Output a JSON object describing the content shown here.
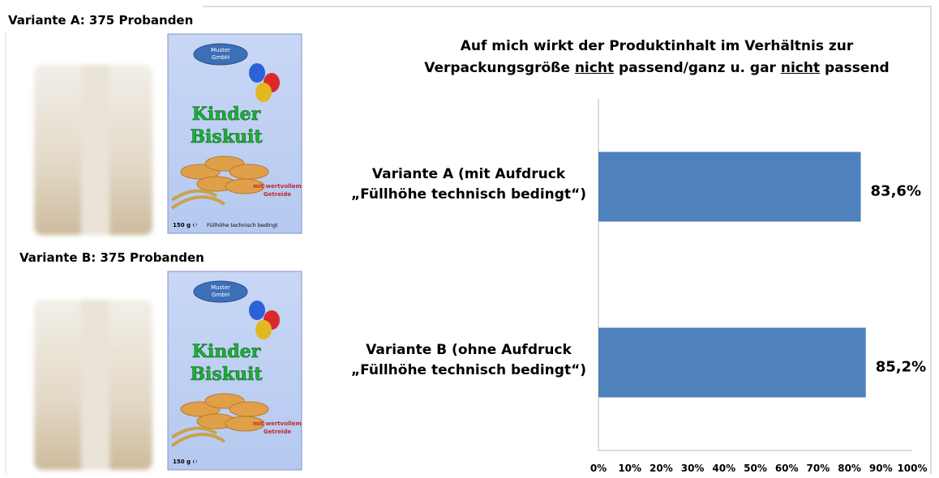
{
  "chart_data": {
    "type": "hbar",
    "title": [
      [
        {
          "text": "Auf mich wirkt der Produktinhalt im Verhältnis zur"
        }
      ],
      [
        {
          "text": "Verpackungsgröße "
        },
        {
          "text": "nicht",
          "underline": true
        },
        {
          "text": " passend/ganz u. gar "
        },
        {
          "text": "nicht",
          "underline": true
        },
        {
          "text": " passend"
        }
      ]
    ],
    "categories": [
      "Variante A (mit Aufdruck\n„Füllhöhe technisch bedingt“)",
      "Variante B (ohne Aufdruck\n„Füllhöhe technisch bedingt“)"
    ],
    "values": [
      83.6,
      85.2
    ],
    "value_labels": [
      "83,6%",
      "85,2%"
    ],
    "color": "#4f81bd",
    "xlim": [
      0,
      100
    ],
    "xticks": [
      {
        "value": 0,
        "label": "0%"
      },
      {
        "value": 10,
        "label": "10%"
      },
      {
        "value": 20,
        "label": "20%"
      },
      {
        "value": 30,
        "label": "30%"
      },
      {
        "value": 40,
        "label": "40%"
      },
      {
        "value": 50,
        "label": "50%"
      },
      {
        "value": 60,
        "label": "60%"
      },
      {
        "value": 70,
        "label": "70%"
      },
      {
        "value": 80,
        "label": "80%"
      },
      {
        "value": 90,
        "label": "90%"
      },
      {
        "value": 100,
        "label": "100%"
      }
    ],
    "grid": false
  },
  "panels": [
    {
      "label": "Variante A: 375 Probanden",
      "package": {
        "brand": [
          "Muster",
          "GmbH"
        ],
        "product": [
          "Kinder",
          "Biskuit"
        ],
        "claim": [
          "mit wertvollem",
          "Getreide"
        ],
        "weight": "150 g ℮",
        "note": "Füllhöhe technisch bedingt"
      }
    },
    {
      "label": "Variante B: 375 Probanden",
      "package": {
        "brand": [
          "Muster",
          "GmbH"
        ],
        "product": [
          "Kinder",
          "Biskuit"
        ],
        "claim": [
          "mit wertvollem",
          "Getreide"
        ],
        "weight": "150 g ℮"
      }
    }
  ]
}
